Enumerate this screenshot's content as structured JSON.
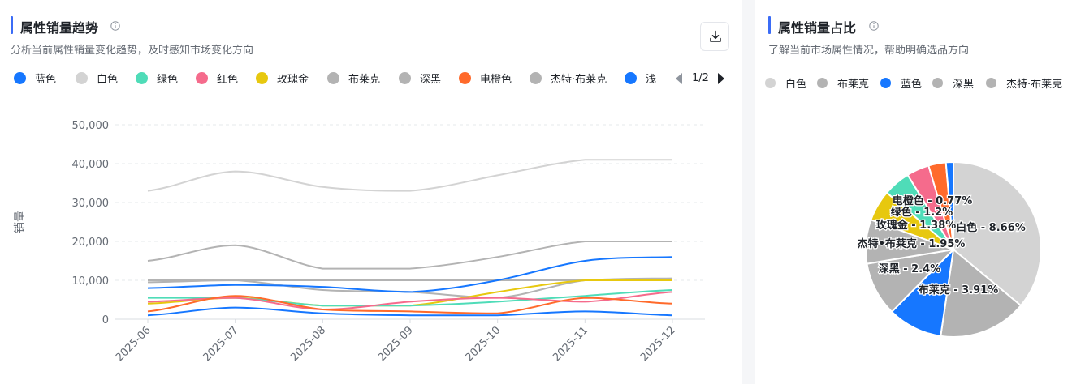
{
  "trend": {
    "title": "属性销量趋势",
    "subtitle": "分析当前属性销量变化趋势，及时感知市场变化方向",
    "pager": "1/2",
    "legend": [
      {
        "name": "蓝色",
        "color": "#1677ff"
      },
      {
        "name": "白色",
        "color": "#d3d3d3"
      },
      {
        "name": "绿色",
        "color": "#4fdcb8"
      },
      {
        "name": "红色",
        "color": "#f56b8c"
      },
      {
        "name": "玫瑰金",
        "color": "#e7c80f"
      },
      {
        "name": "布莱克",
        "color": "#b3b3b3"
      },
      {
        "name": "深黑",
        "color": "#b3b3b3"
      },
      {
        "name": "电橙色",
        "color": "#ff6a2b"
      },
      {
        "name": "杰特·布莱克",
        "color": "#b3b3b3"
      },
      {
        "name": "浅",
        "color": "#1677ff"
      }
    ]
  },
  "share": {
    "title": "属性销量占比",
    "subtitle": "了解当前市场属性情况，帮助明确选品方向",
    "legend": [
      {
        "name": "白色",
        "color": "#d3d3d3"
      },
      {
        "name": "布莱克",
        "color": "#b3b3b3"
      },
      {
        "name": "蓝色",
        "color": "#1677ff"
      },
      {
        "name": "深黑",
        "color": "#b3b3b3"
      },
      {
        "name": "杰特·布莱克",
        "color": "#b3b3b3"
      }
    ]
  },
  "chart_data": [
    {
      "type": "line",
      "ylabel": "销量",
      "xlabel": "",
      "categories": [
        "2025-06",
        "2025-07",
        "2025-08",
        "2025-09",
        "2025-10",
        "2025-11",
        "2025-12"
      ],
      "ylim": [
        0,
        50000
      ],
      "yticks": [
        "0",
        "10,000",
        "20,000",
        "30,000",
        "40,000",
        "50,000"
      ],
      "grid": true,
      "series": [
        {
          "name": "白色",
          "color": "#d3d3d3",
          "values": [
            33000,
            38000,
            34000,
            33000,
            37000,
            41000,
            41000
          ]
        },
        {
          "name": "布莱克",
          "color": "#b3b3b3",
          "values": [
            15000,
            19000,
            13000,
            13000,
            16000,
            20000,
            20000
          ]
        },
        {
          "name": "深黑",
          "color": "#b3b3b3",
          "values": [
            10000,
            10000,
            10000,
            10000,
            10000,
            10000,
            10000
          ]
        },
        {
          "name": "杰特·布莱克",
          "color": "#b3b3b3",
          "values": [
            9500,
            10000,
            7500,
            7000,
            5500,
            10000,
            10500
          ]
        },
        {
          "name": "蓝色",
          "color": "#1677ff",
          "values": [
            8000,
            8800,
            8300,
            7000,
            10000,
            15000,
            16000
          ]
        },
        {
          "name": "玫瑰金",
          "color": "#e7c80f",
          "values": [
            4000,
            5500,
            3500,
            3500,
            7000,
            10000,
            10000
          ]
        },
        {
          "name": "绿色",
          "color": "#4fdcb8",
          "values": [
            5500,
            5500,
            3500,
            3500,
            4500,
            6000,
            7500
          ]
        },
        {
          "name": "红色",
          "color": "#f56b8c",
          "values": [
            4500,
            5500,
            2500,
            4500,
            5500,
            4500,
            7000
          ]
        },
        {
          "name": "电橙色",
          "color": "#ff6a2b",
          "values": [
            2000,
            6000,
            2500,
            2000,
            1500,
            5500,
            4000
          ]
        },
        {
          "name": "浅",
          "color": "#1677ff",
          "values": [
            1000,
            3000,
            1500,
            1000,
            1000,
            2000,
            1000
          ]
        }
      ]
    },
    {
      "type": "pie",
      "slices": [
        {
          "name": "白色",
          "value": 8.66,
          "label": "白色 - 8.66%",
          "color": "#d3d3d3"
        },
        {
          "name": "布莱克",
          "value": 3.91,
          "label": "布莱克 - 3.91%",
          "color": "#b3b3b3"
        },
        {
          "name": "蓝色",
          "value": 2.42,
          "label": "",
          "color": "#1677ff"
        },
        {
          "name": "深黑",
          "value": 2.4,
          "label": "深黑 - 2.4%",
          "color": "#b3b3b3"
        },
        {
          "name": "杰特·布莱克",
          "value": 1.95,
          "label": "杰特•布莱克 - 1.95%",
          "color": "#b3b3b3"
        },
        {
          "name": "玫瑰金",
          "value": 1.38,
          "label": "玫瑰金 - 1.38%",
          "color": "#e7c80f"
        },
        {
          "name": "绿色",
          "value": 1.2,
          "label": "绿色 - 1.2%",
          "color": "#4fdcb8"
        },
        {
          "name": "红色",
          "value": 1.0,
          "label": "",
          "color": "#f56b8c"
        },
        {
          "name": "电橙色",
          "value": 0.77,
          "label": "电橙色 - 0.77%",
          "color": "#ff6a2b"
        },
        {
          "name": "浅",
          "value": 0.33,
          "label": "",
          "color": "#1677ff"
        }
      ]
    }
  ]
}
